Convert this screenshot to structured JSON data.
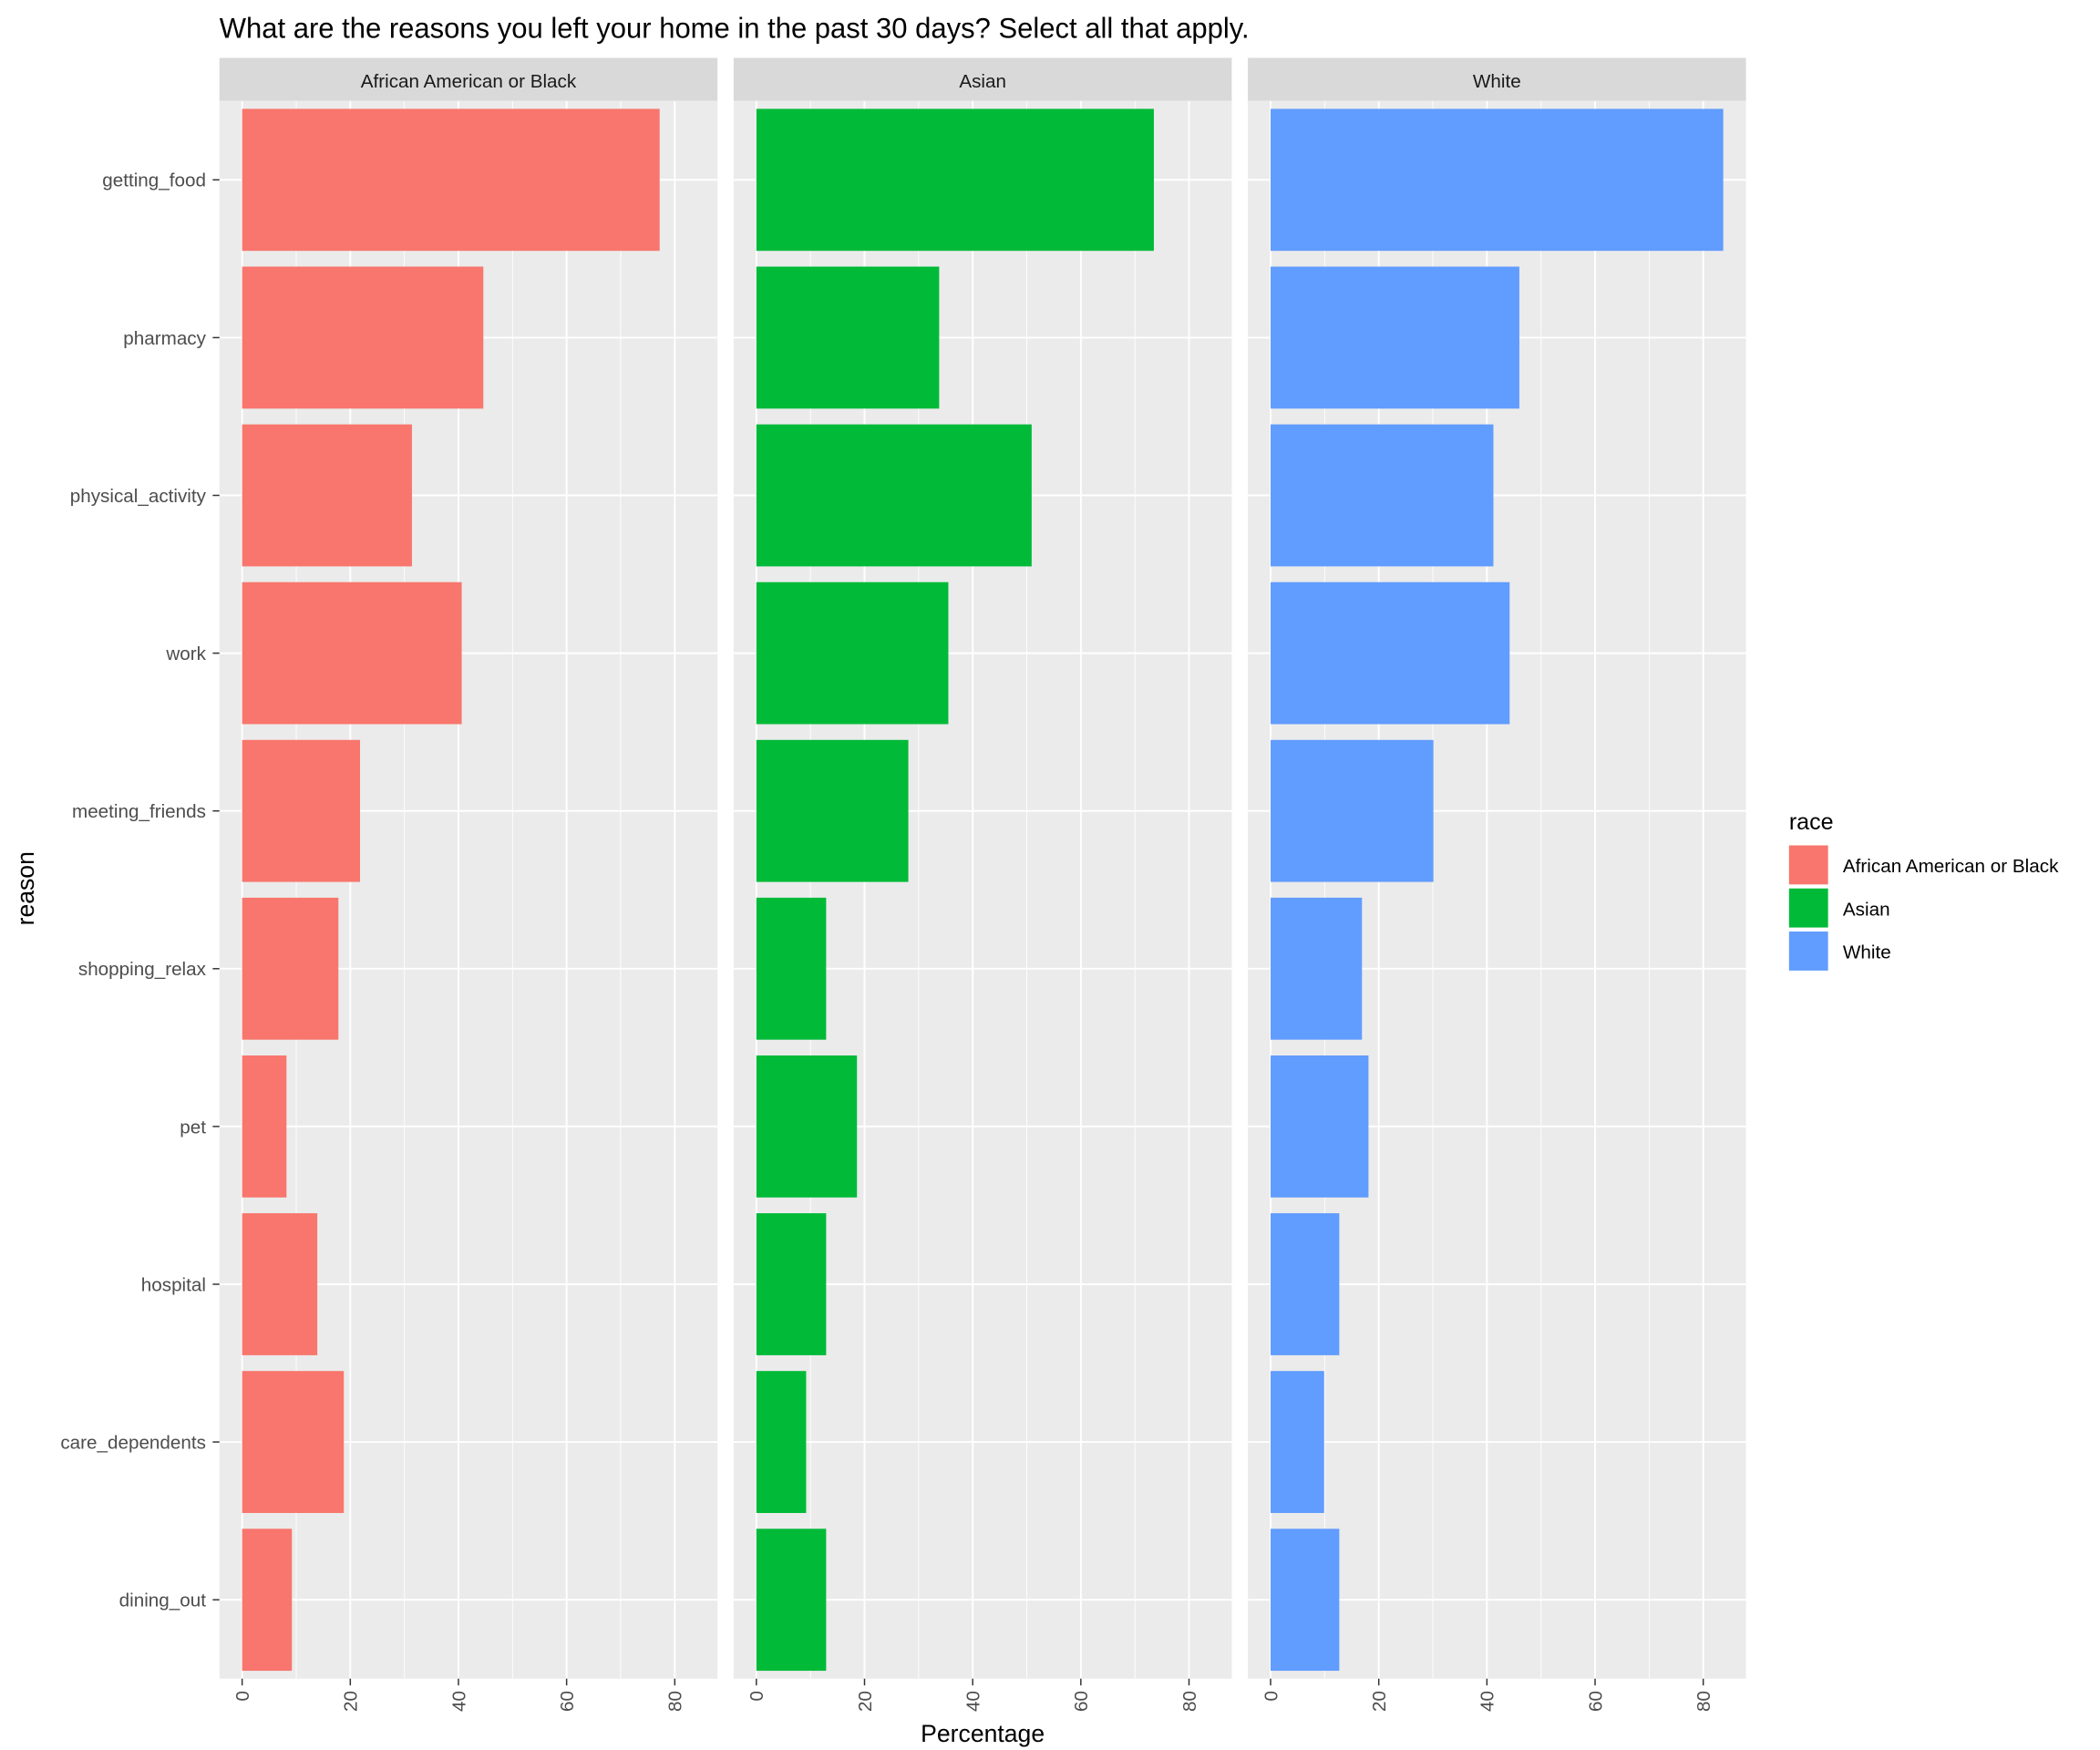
{
  "chart_data": {
    "type": "bar",
    "orientation": "horizontal",
    "title": "What are the reasons you left your home in the past 30 days? Select all that apply.",
    "xlabel": "Percentage",
    "ylabel": "reason",
    "xlim": [
      -4.2,
      87.9
    ],
    "xticks": [
      0,
      20,
      40,
      60,
      80
    ],
    "grid": true,
    "legend": {
      "title": "race",
      "placement": "right"
    },
    "categories": [
      "getting_food",
      "pharmacy",
      "physical_activity",
      "work",
      "meeting_friends",
      "shopping_relax",
      "pet",
      "hospital",
      "care_dependents",
      "dining_out"
    ],
    "series": [
      {
        "name": "African American or Black",
        "color": "#F8766D",
        "values": [
          77.2,
          44.6,
          31.4,
          40.6,
          21.8,
          17.8,
          8.2,
          13.9,
          18.8,
          9.2
        ]
      },
      {
        "name": "Asian",
        "color": "#00BA38",
        "values": [
          73.5,
          33.8,
          50.9,
          35.5,
          28.1,
          12.9,
          18.6,
          12.9,
          9.2,
          12.9
        ]
      },
      {
        "name": "White",
        "color": "#619CFF",
        "values": [
          83.7,
          46.0,
          41.2,
          44.2,
          30.1,
          16.9,
          18.1,
          12.7,
          9.9,
          12.7
        ]
      }
    ]
  }
}
